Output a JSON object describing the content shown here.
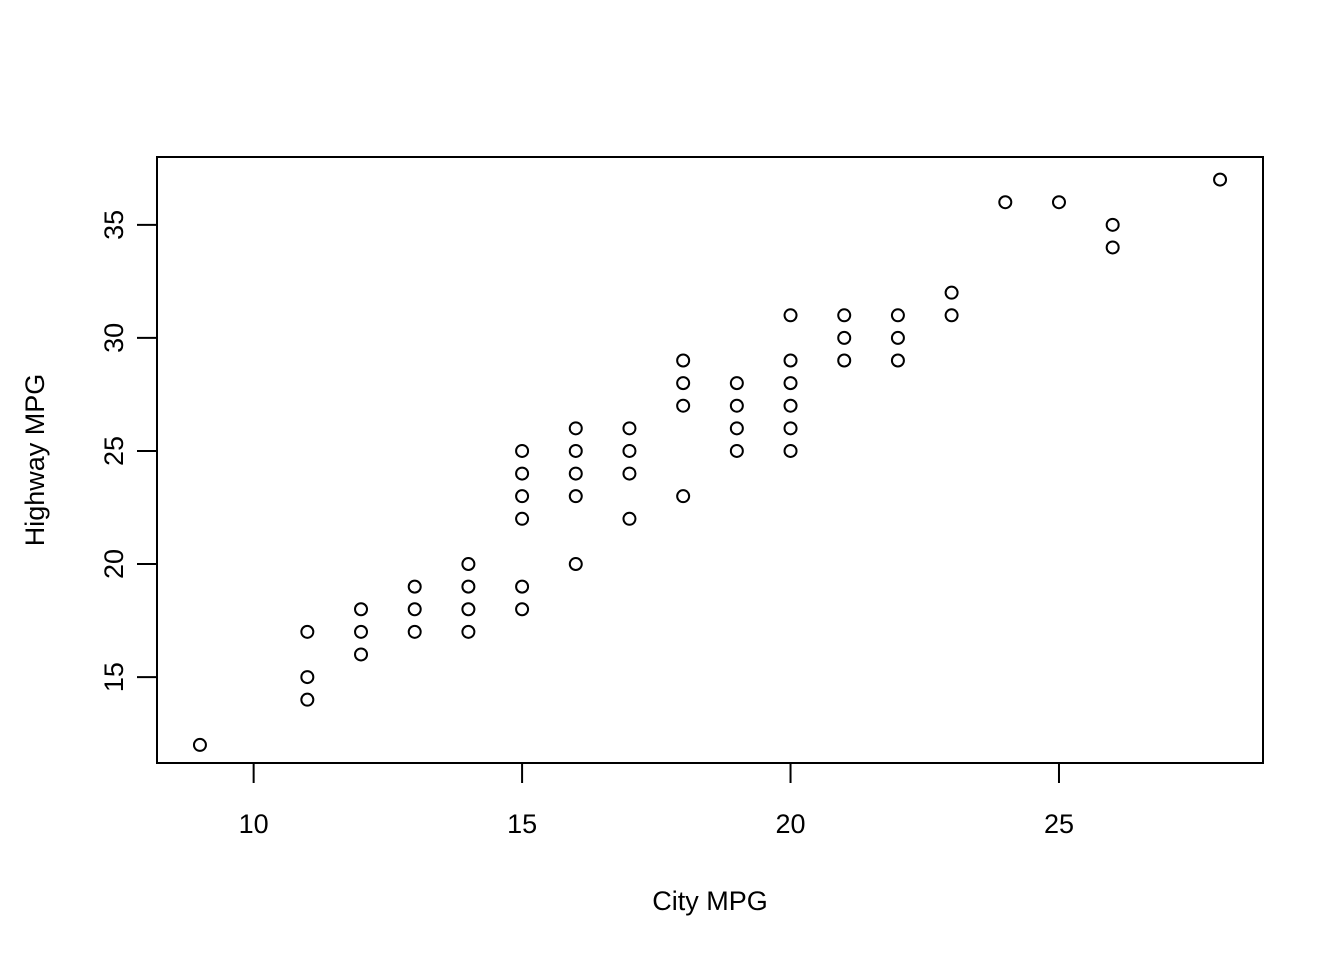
{
  "chart_data": {
    "type": "scatter",
    "title": "",
    "xlabel": "City MPG",
    "ylabel": "Highway MPG",
    "xlim": [
      8.2,
      28.8
    ],
    "ylim": [
      11.2,
      38.0
    ],
    "xticks": [
      10,
      15,
      20,
      25
    ],
    "yticks": [
      15,
      20,
      25,
      30,
      35
    ],
    "grid": false,
    "legend": "none",
    "marker": "open-circle",
    "color": "#000000",
    "points": [
      [
        9,
        12
      ],
      [
        11,
        14
      ],
      [
        11,
        15
      ],
      [
        11,
        17
      ],
      [
        12,
        16
      ],
      [
        12,
        17
      ],
      [
        12,
        18
      ],
      [
        13,
        17
      ],
      [
        13,
        18
      ],
      [
        13,
        19
      ],
      [
        14,
        17
      ],
      [
        14,
        18
      ],
      [
        14,
        19
      ],
      [
        14,
        20
      ],
      [
        15,
        18
      ],
      [
        15,
        19
      ],
      [
        15,
        22
      ],
      [
        15,
        23
      ],
      [
        15,
        24
      ],
      [
        15,
        25
      ],
      [
        16,
        20
      ],
      [
        16,
        23
      ],
      [
        16,
        24
      ],
      [
        16,
        25
      ],
      [
        16,
        26
      ],
      [
        17,
        22
      ],
      [
        17,
        24
      ],
      [
        17,
        25
      ],
      [
        17,
        26
      ],
      [
        18,
        23
      ],
      [
        18,
        27
      ],
      [
        18,
        28
      ],
      [
        18,
        29
      ],
      [
        19,
        25
      ],
      [
        19,
        26
      ],
      [
        19,
        27
      ],
      [
        19,
        28
      ],
      [
        20,
        25
      ],
      [
        20,
        26
      ],
      [
        20,
        27
      ],
      [
        20,
        28
      ],
      [
        20,
        29
      ],
      [
        20,
        31
      ],
      [
        21,
        29
      ],
      [
        21,
        30
      ],
      [
        21,
        31
      ],
      [
        22,
        29
      ],
      [
        22,
        30
      ],
      [
        22,
        31
      ],
      [
        23,
        31
      ],
      [
        23,
        32
      ],
      [
        24,
        36
      ],
      [
        25,
        36
      ],
      [
        26,
        34
      ],
      [
        26,
        35
      ],
      [
        28,
        37
      ]
    ]
  }
}
